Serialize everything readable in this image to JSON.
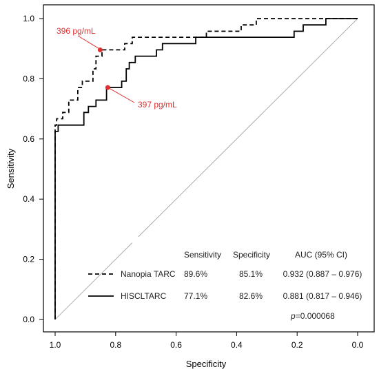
{
  "chart_data": {
    "type": "line",
    "xlabel": "Specificity",
    "ylabel": "Sensitivity",
    "xlim": [
      1.0,
      0.0
    ],
    "ylim": [
      0.0,
      1.0
    ],
    "x_reversed": true,
    "xticks": [
      "1.0",
      "0.8",
      "0.6",
      "0.4",
      "0.2",
      "0.0"
    ],
    "yticks": [
      "0.0",
      "0.2",
      "0.4",
      "0.6",
      "0.8",
      "1.0"
    ],
    "grid": false,
    "reference_line": "diagonal",
    "series": [
      {
        "name": "Nanopia TARC",
        "line_style": "dashed",
        "color": "#000000",
        "points": [
          [
            1.0,
            0.0
          ],
          [
            1.0,
            0.646
          ],
          [
            0.995,
            0.646
          ],
          [
            0.995,
            0.667
          ],
          [
            0.975,
            0.667
          ],
          [
            0.975,
            0.688
          ],
          [
            0.955,
            0.688
          ],
          [
            0.955,
            0.729
          ],
          [
            0.925,
            0.729
          ],
          [
            0.925,
            0.771
          ],
          [
            0.91,
            0.771
          ],
          [
            0.91,
            0.792
          ],
          [
            0.875,
            0.792
          ],
          [
            0.875,
            0.833
          ],
          [
            0.865,
            0.833
          ],
          [
            0.865,
            0.875
          ],
          [
            0.845,
            0.875
          ],
          [
            0.845,
            0.896
          ],
          [
            0.77,
            0.896
          ],
          [
            0.77,
            0.917
          ],
          [
            0.745,
            0.917
          ],
          [
            0.745,
            0.938
          ],
          [
            0.5,
            0.938
          ],
          [
            0.5,
            0.958
          ],
          [
            0.385,
            0.958
          ],
          [
            0.385,
            0.979
          ],
          [
            0.335,
            0.979
          ],
          [
            0.335,
            1.0
          ],
          [
            0.0,
            1.0
          ]
        ]
      },
      {
        "name": "HISCLTARC",
        "line_style": "solid",
        "color": "#000000",
        "points": [
          [
            1.0,
            0.0
          ],
          [
            1.0,
            0.625
          ],
          [
            0.99,
            0.625
          ],
          [
            0.99,
            0.646
          ],
          [
            0.905,
            0.646
          ],
          [
            0.905,
            0.688
          ],
          [
            0.89,
            0.688
          ],
          [
            0.89,
            0.708
          ],
          [
            0.865,
            0.708
          ],
          [
            0.865,
            0.729
          ],
          [
            0.83,
            0.729
          ],
          [
            0.83,
            0.771
          ],
          [
            0.78,
            0.771
          ],
          [
            0.78,
            0.792
          ],
          [
            0.765,
            0.792
          ],
          [
            0.765,
            0.833
          ],
          [
            0.755,
            0.833
          ],
          [
            0.755,
            0.854
          ],
          [
            0.735,
            0.854
          ],
          [
            0.735,
            0.875
          ],
          [
            0.665,
            0.875
          ],
          [
            0.665,
            0.896
          ],
          [
            0.645,
            0.896
          ],
          [
            0.645,
            0.917
          ],
          [
            0.535,
            0.917
          ],
          [
            0.535,
            0.938
          ],
          [
            0.21,
            0.938
          ],
          [
            0.21,
            0.958
          ],
          [
            0.18,
            0.958
          ],
          [
            0.18,
            0.979
          ],
          [
            0.105,
            0.979
          ],
          [
            0.105,
            1.0
          ],
          [
            0.0,
            1.0
          ]
        ]
      }
    ],
    "annotations": [
      {
        "text": "396 pg/mL",
        "point": [
          0.851,
          0.896
        ],
        "color": "#e03030"
      },
      {
        "text": "397 pg/mL",
        "point": [
          0.826,
          0.771
        ],
        "color": "#e03030"
      }
    ],
    "stats_table": {
      "headers": [
        "Sensitivity",
        "Specificity",
        "AUC (95% CI)"
      ],
      "rows": [
        {
          "label": "Nanopia TARC",
          "sensitivity": "89.6%",
          "specificity": "85.1%",
          "auc": "0.932 (0.887 – 0.976)"
        },
        {
          "label": "HISCLTARC",
          "sensitivity": "77.1%",
          "specificity": "82.6%",
          "auc": "0.881 (0.817 – 0.946)"
        }
      ],
      "p_value": "0.000068"
    }
  }
}
